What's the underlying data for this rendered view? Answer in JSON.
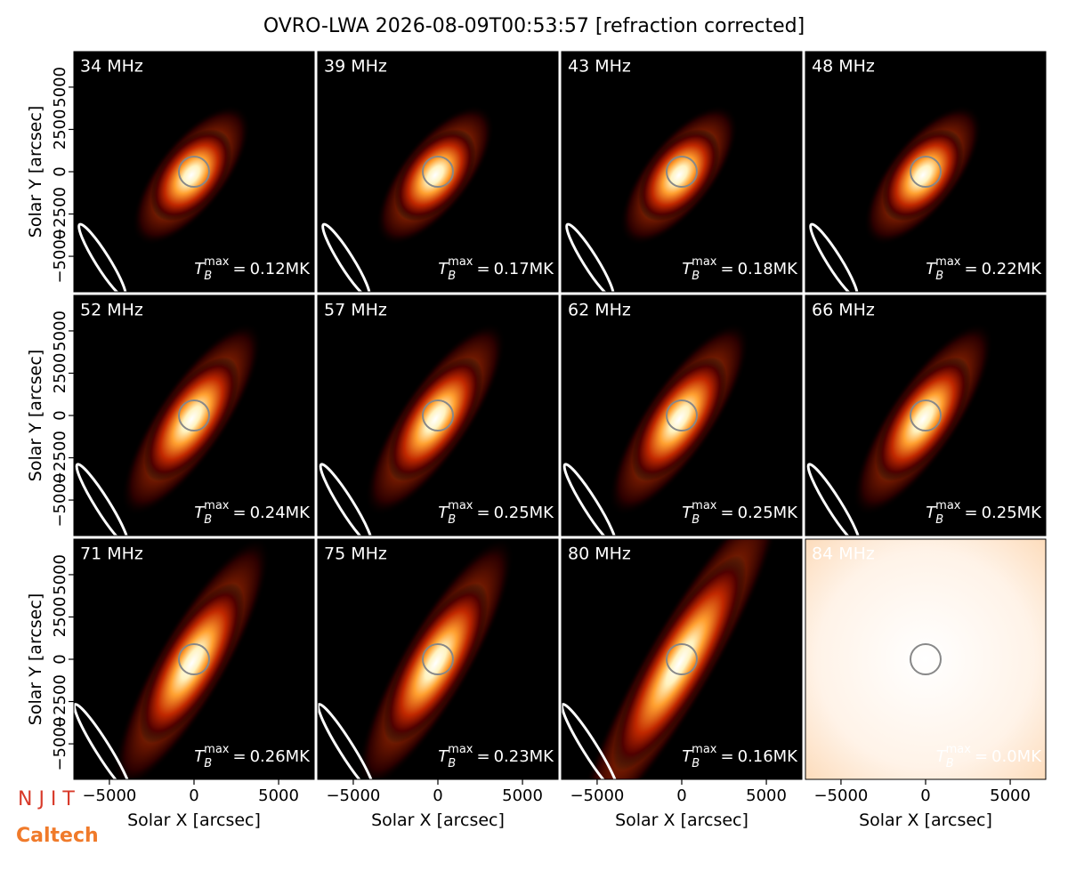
{
  "chart_data": {
    "type": "image-grid",
    "title": "OVRO-LWA 2026-08-09T00:53:57 [refraction corrected]",
    "x_label": "Solar X [arcsec]",
    "y_label": "Solar Y [arcsec]",
    "xlim": [
      -7100,
      7100
    ],
    "ylim": [
      -7100,
      7100
    ],
    "xticks": [
      {
        "value": -5000,
        "label": "−5000"
      },
      0,
      5000
    ],
    "yticks": [
      {
        "value": -5000,
        "label": "−5000"
      },
      {
        "value": -2500,
        "label": "−2500"
      },
      0,
      2500,
      5000
    ],
    "tb_label": {
      "symbol": "T",
      "sub": "B",
      "sup": "max",
      "eq": "="
    },
    "panels": [
      {
        "label": "34 MHz",
        "tb_max": "0.12MK"
      },
      {
        "label": "39 MHz",
        "tb_max": "0.17MK"
      },
      {
        "label": "43 MHz",
        "tb_max": "0.18MK"
      },
      {
        "label": "48 MHz",
        "tb_max": "0.22MK"
      },
      {
        "label": "52 MHz",
        "tb_max": "0.24MK"
      },
      {
        "label": "57 MHz",
        "tb_max": "0.25MK"
      },
      {
        "label": "62 MHz",
        "tb_max": "0.25MK"
      },
      {
        "label": "66 MHz",
        "tb_max": "0.25MK"
      },
      {
        "label": "71 MHz",
        "tb_max": "0.26MK"
      },
      {
        "label": "75 MHz",
        "tb_max": "0.23MK"
      },
      {
        "label": "80 MHz",
        "tb_max": "0.16MK"
      },
      {
        "label": "84 MHz",
        "tb_max": "0.0MK"
      }
    ]
  },
  "logos": [
    "N J I T",
    "Caltech"
  ]
}
